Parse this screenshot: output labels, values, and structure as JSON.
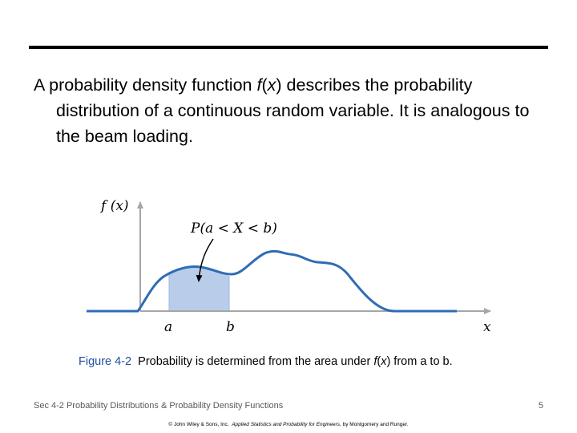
{
  "body": {
    "part1": "A probability density function ",
    "fx": "f",
    "paren_open": "(",
    "x": "x",
    "part2": ") describes the probability distribution of a continuous random variable.  It is analogous to the beam loading."
  },
  "figure": {
    "y_label": "f (x)",
    "annotation": "P(a < X < b)",
    "a_label": "a",
    "b_label": "b",
    "x_label": "x",
    "colors": {
      "curve": "#2e6db4",
      "shade": "#b9cdeb",
      "axis": "#a6a6a6"
    }
  },
  "caption": {
    "label": "Figure 4-2",
    "text1": "  Probability is determined from the area under ",
    "f": "f",
    "paren_open": "(",
    "x": "x",
    "text2": ") from a to b."
  },
  "footer": {
    "left": "Sec 4-2 Probability Distributions & Probability Density Functions",
    "page": "5",
    "copyright_pre": "© John Wiley & Sons, Inc.  ",
    "copyright_title": "Applied Statistics and Probability for Engineers",
    "copyright_post": ", by Montgomery and Runger."
  }
}
